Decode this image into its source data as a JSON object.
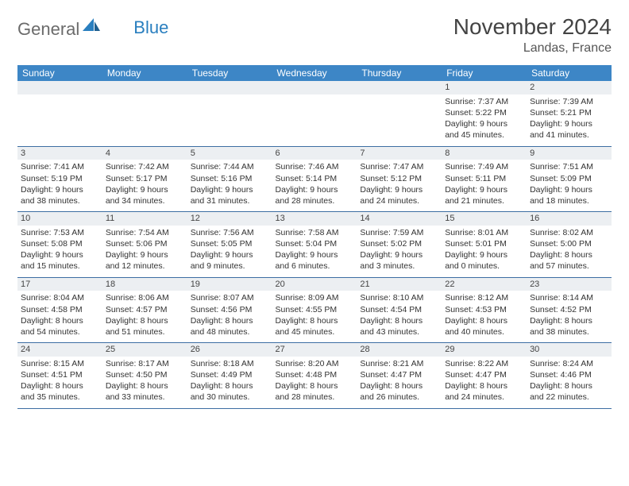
{
  "colors": {
    "header_bg": "#3d86c6",
    "header_text": "#ffffff",
    "daynum_bg": "#eceff2",
    "row_border": "#3d6ea3",
    "logo_grey": "#6b6b6b",
    "logo_blue": "#2a7fbf",
    "body_text": "#333333",
    "background": "#ffffff"
  },
  "typography": {
    "base_font": "Arial",
    "cell_fontsize_pt": 8,
    "daynum_fontsize_pt": 8.5,
    "header_fontsize_pt": 9,
    "title_fontsize_pt": 21,
    "location_fontsize_pt": 12
  },
  "logo": {
    "part1": "General",
    "part2": "Blue",
    "icon_name": "sail-icon"
  },
  "title": "November 2024",
  "location": "Landas, France",
  "weekdays": [
    "Sunday",
    "Monday",
    "Tuesday",
    "Wednesday",
    "Thursday",
    "Friday",
    "Saturday"
  ],
  "calendar": {
    "type": "table",
    "columns": 7,
    "rows": 5,
    "weeks": [
      [
        {
          "empty": true
        },
        {
          "empty": true
        },
        {
          "empty": true
        },
        {
          "empty": true
        },
        {
          "empty": true
        },
        {
          "day": "1",
          "sunrise": "Sunrise: 7:37 AM",
          "sunset": "Sunset: 5:22 PM",
          "daylight": "Daylight: 9 hours and 45 minutes."
        },
        {
          "day": "2",
          "sunrise": "Sunrise: 7:39 AM",
          "sunset": "Sunset: 5:21 PM",
          "daylight": "Daylight: 9 hours and 41 minutes."
        }
      ],
      [
        {
          "day": "3",
          "sunrise": "Sunrise: 7:41 AM",
          "sunset": "Sunset: 5:19 PM",
          "daylight": "Daylight: 9 hours and 38 minutes."
        },
        {
          "day": "4",
          "sunrise": "Sunrise: 7:42 AM",
          "sunset": "Sunset: 5:17 PM",
          "daylight": "Daylight: 9 hours and 34 minutes."
        },
        {
          "day": "5",
          "sunrise": "Sunrise: 7:44 AM",
          "sunset": "Sunset: 5:16 PM",
          "daylight": "Daylight: 9 hours and 31 minutes."
        },
        {
          "day": "6",
          "sunrise": "Sunrise: 7:46 AM",
          "sunset": "Sunset: 5:14 PM",
          "daylight": "Daylight: 9 hours and 28 minutes."
        },
        {
          "day": "7",
          "sunrise": "Sunrise: 7:47 AM",
          "sunset": "Sunset: 5:12 PM",
          "daylight": "Daylight: 9 hours and 24 minutes."
        },
        {
          "day": "8",
          "sunrise": "Sunrise: 7:49 AM",
          "sunset": "Sunset: 5:11 PM",
          "daylight": "Daylight: 9 hours and 21 minutes."
        },
        {
          "day": "9",
          "sunrise": "Sunrise: 7:51 AM",
          "sunset": "Sunset: 5:09 PM",
          "daylight": "Daylight: 9 hours and 18 minutes."
        }
      ],
      [
        {
          "day": "10",
          "sunrise": "Sunrise: 7:53 AM",
          "sunset": "Sunset: 5:08 PM",
          "daylight": "Daylight: 9 hours and 15 minutes."
        },
        {
          "day": "11",
          "sunrise": "Sunrise: 7:54 AM",
          "sunset": "Sunset: 5:06 PM",
          "daylight": "Daylight: 9 hours and 12 minutes."
        },
        {
          "day": "12",
          "sunrise": "Sunrise: 7:56 AM",
          "sunset": "Sunset: 5:05 PM",
          "daylight": "Daylight: 9 hours and 9 minutes."
        },
        {
          "day": "13",
          "sunrise": "Sunrise: 7:58 AM",
          "sunset": "Sunset: 5:04 PM",
          "daylight": "Daylight: 9 hours and 6 minutes."
        },
        {
          "day": "14",
          "sunrise": "Sunrise: 7:59 AM",
          "sunset": "Sunset: 5:02 PM",
          "daylight": "Daylight: 9 hours and 3 minutes."
        },
        {
          "day": "15",
          "sunrise": "Sunrise: 8:01 AM",
          "sunset": "Sunset: 5:01 PM",
          "daylight": "Daylight: 9 hours and 0 minutes."
        },
        {
          "day": "16",
          "sunrise": "Sunrise: 8:02 AM",
          "sunset": "Sunset: 5:00 PM",
          "daylight": "Daylight: 8 hours and 57 minutes."
        }
      ],
      [
        {
          "day": "17",
          "sunrise": "Sunrise: 8:04 AM",
          "sunset": "Sunset: 4:58 PM",
          "daylight": "Daylight: 8 hours and 54 minutes."
        },
        {
          "day": "18",
          "sunrise": "Sunrise: 8:06 AM",
          "sunset": "Sunset: 4:57 PM",
          "daylight": "Daylight: 8 hours and 51 minutes."
        },
        {
          "day": "19",
          "sunrise": "Sunrise: 8:07 AM",
          "sunset": "Sunset: 4:56 PM",
          "daylight": "Daylight: 8 hours and 48 minutes."
        },
        {
          "day": "20",
          "sunrise": "Sunrise: 8:09 AM",
          "sunset": "Sunset: 4:55 PM",
          "daylight": "Daylight: 8 hours and 45 minutes."
        },
        {
          "day": "21",
          "sunrise": "Sunrise: 8:10 AM",
          "sunset": "Sunset: 4:54 PM",
          "daylight": "Daylight: 8 hours and 43 minutes."
        },
        {
          "day": "22",
          "sunrise": "Sunrise: 8:12 AM",
          "sunset": "Sunset: 4:53 PM",
          "daylight": "Daylight: 8 hours and 40 minutes."
        },
        {
          "day": "23",
          "sunrise": "Sunrise: 8:14 AM",
          "sunset": "Sunset: 4:52 PM",
          "daylight": "Daylight: 8 hours and 38 minutes."
        }
      ],
      [
        {
          "day": "24",
          "sunrise": "Sunrise: 8:15 AM",
          "sunset": "Sunset: 4:51 PM",
          "daylight": "Daylight: 8 hours and 35 minutes."
        },
        {
          "day": "25",
          "sunrise": "Sunrise: 8:17 AM",
          "sunset": "Sunset: 4:50 PM",
          "daylight": "Daylight: 8 hours and 33 minutes."
        },
        {
          "day": "26",
          "sunrise": "Sunrise: 8:18 AM",
          "sunset": "Sunset: 4:49 PM",
          "daylight": "Daylight: 8 hours and 30 minutes."
        },
        {
          "day": "27",
          "sunrise": "Sunrise: 8:20 AM",
          "sunset": "Sunset: 4:48 PM",
          "daylight": "Daylight: 8 hours and 28 minutes."
        },
        {
          "day": "28",
          "sunrise": "Sunrise: 8:21 AM",
          "sunset": "Sunset: 4:47 PM",
          "daylight": "Daylight: 8 hours and 26 minutes."
        },
        {
          "day": "29",
          "sunrise": "Sunrise: 8:22 AM",
          "sunset": "Sunset: 4:47 PM",
          "daylight": "Daylight: 8 hours and 24 minutes."
        },
        {
          "day": "30",
          "sunrise": "Sunrise: 8:24 AM",
          "sunset": "Sunset: 4:46 PM",
          "daylight": "Daylight: 8 hours and 22 minutes."
        }
      ]
    ]
  }
}
